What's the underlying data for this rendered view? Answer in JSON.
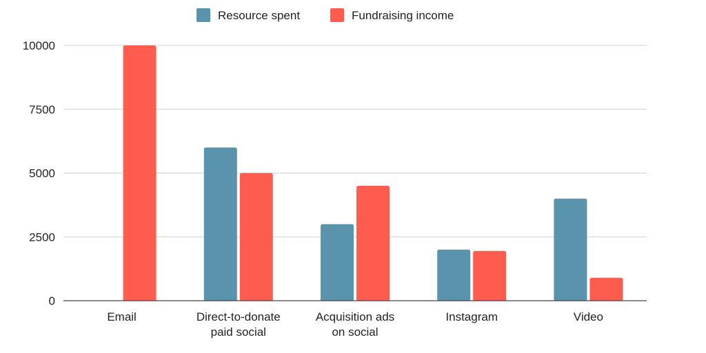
{
  "chart_data": {
    "type": "bar",
    "categories": [
      [
        "Email"
      ],
      [
        "Direct-to-donate",
        "paid social"
      ],
      [
        "Acquisition ads",
        "on social"
      ],
      [
        "Instagram"
      ],
      [
        "Video"
      ]
    ],
    "series": [
      {
        "name": "Resource spent",
        "color": "#5a93ac",
        "values": [
          0,
          6000,
          3000,
          2000,
          4000
        ]
      },
      {
        "name": "Fundraising income",
        "color": "#fd5c4e",
        "values": [
          10000,
          5000,
          4500,
          1950,
          900
        ]
      }
    ],
    "ylim": [
      0,
      10000
    ],
    "yticks": [
      "0",
      "2500",
      "5000",
      "7500",
      "10000"
    ],
    "ytick_values": [
      0,
      2500,
      5000,
      7500,
      10000
    ],
    "grid": true,
    "legend_position": "top-center",
    "gridline_color": "#d0d0d0",
    "axis_color": "#444444"
  }
}
